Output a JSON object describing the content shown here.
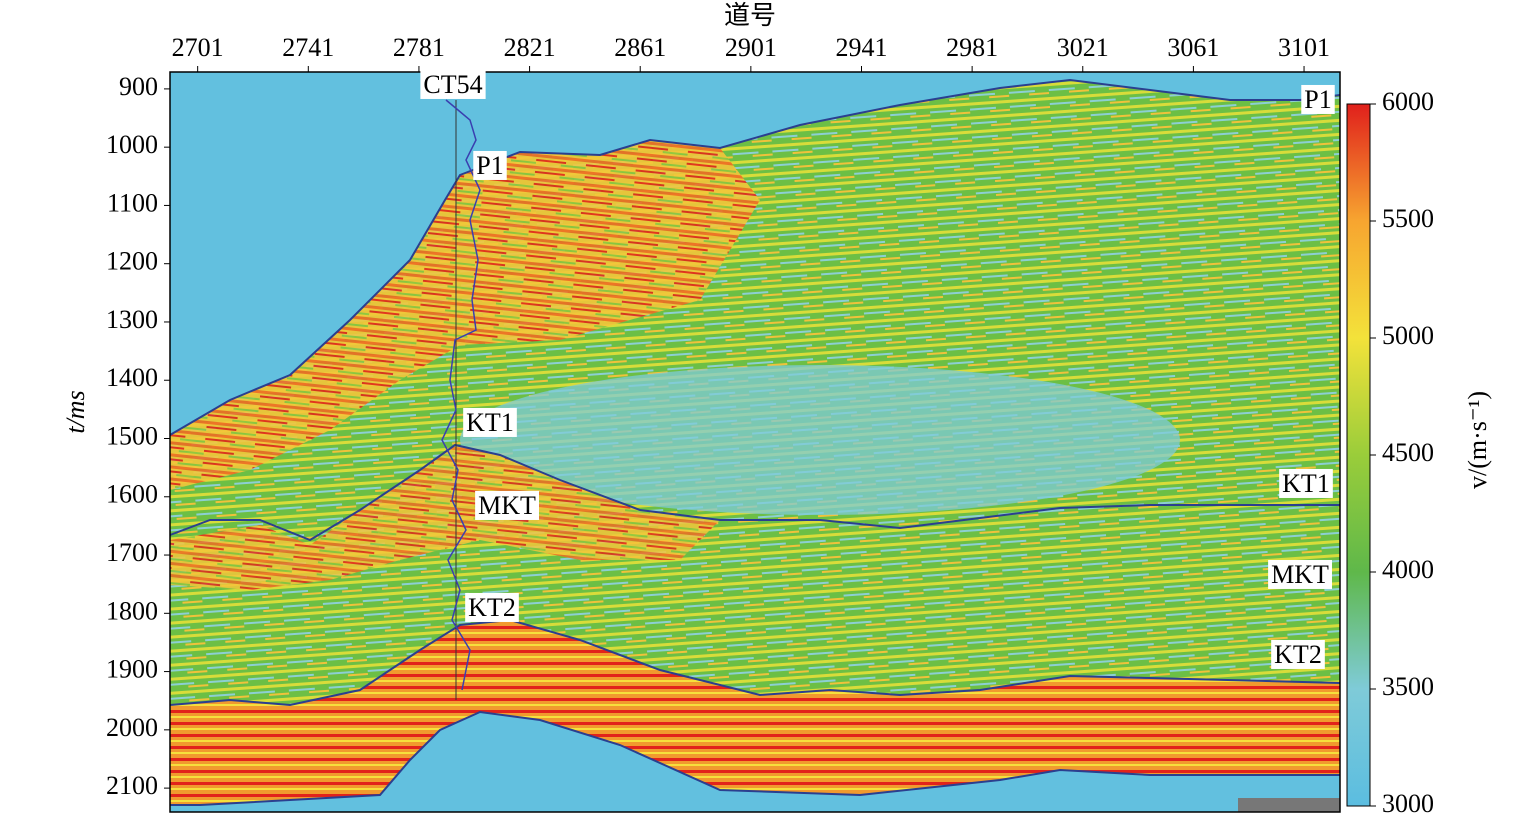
{
  "chart_data": {
    "type": "section",
    "x_label": "道号",
    "y_label": "t/ms",
    "colorbar_label": "v/(m·s⁻¹)",
    "xlim": [
      2691,
      3114
    ],
    "xticks": [
      2701,
      2741,
      2781,
      2821,
      2861,
      2901,
      2941,
      2981,
      3021,
      3061,
      3101
    ],
    "ylim": [
      871,
      2141
    ],
    "yticks": [
      900,
      1000,
      1100,
      1200,
      1300,
      1400,
      1500,
      1600,
      1700,
      1800,
      1900,
      2000,
      2100
    ],
    "clim": [
      3000,
      6000
    ],
    "cticks": [
      3000,
      3500,
      4000,
      4500,
      5000,
      5500,
      6000
    ],
    "colormap": [
      "#5bbde0",
      "#7fcbd8",
      "#5fb84a",
      "#9acd3a",
      "#f3e23a",
      "#f7a530",
      "#e0201c"
    ],
    "annotations": [
      "CT54",
      "P1",
      "KT1",
      "MKT",
      "KT2",
      "P1",
      "KT1",
      "MKT",
      "KT2"
    ]
  }
}
